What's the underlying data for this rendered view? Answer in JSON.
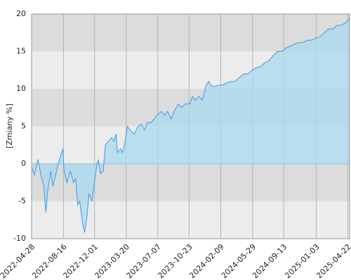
{
  "chart_data": {
    "type": "area",
    "y_label": "[Zmiany %]",
    "color": "#3d9be9",
    "fill": "#a9d9ee",
    "ylim": [
      -10,
      20
    ],
    "yticks": [
      -10,
      -5,
      0,
      5,
      10,
      15,
      20
    ],
    "xlim": [
      "2022-04-28",
      "2025-04-28"
    ],
    "xticks": [
      "2022-04-28",
      "2022-08-16",
      "2022-12-01",
      "2023-03-20",
      "2023-07-07",
      "2023-10-23",
      "2024-02-09",
      "2024-05-29",
      "2024-09-13",
      "2025-01-03",
      "2025-04-22"
    ],
    "grid": true,
    "x": [
      "2022-04-28",
      "2022-05-08",
      "2022-05-20",
      "2022-05-30",
      "2022-06-09",
      "2022-06-16",
      "2022-06-23",
      "2022-07-03",
      "2022-07-10",
      "2022-07-23",
      "2022-08-01",
      "2022-08-14",
      "2022-08-18",
      "2022-08-28",
      "2022-09-09",
      "2022-09-19",
      "2022-09-27",
      "2022-10-04",
      "2022-10-11",
      "2022-10-21",
      "2022-10-28",
      "2022-11-05",
      "2022-11-12",
      "2022-11-22",
      "2022-11-29",
      "2022-12-09",
      "2022-12-14",
      "2022-12-21",
      "2022-12-31",
      "2023-01-07",
      "2023-01-17",
      "2023-01-29",
      "2023-02-06",
      "2023-02-13",
      "2023-02-18",
      "2023-02-28",
      "2023-03-07",
      "2023-03-14",
      "2023-03-24",
      "2023-04-03",
      "2023-04-17",
      "2023-04-30",
      "2023-05-12",
      "2023-05-22",
      "2023-05-31",
      "2023-06-13",
      "2023-06-25",
      "2023-07-05",
      "2023-07-19",
      "2023-07-31",
      "2023-08-10",
      "2023-08-22",
      "2023-09-01",
      "2023-09-16",
      "2023-09-26",
      "2023-10-10",
      "2023-10-25",
      "2023-11-04",
      "2023-11-14",
      "2023-11-26",
      "2023-12-08",
      "2023-12-20",
      "2023-12-30",
      "2024-01-06",
      "2024-01-16",
      "2024-01-31",
      "2024-02-14",
      "2024-02-29",
      "2024-03-15",
      "2024-03-29",
      "2024-04-13",
      "2024-04-28",
      "2024-05-12",
      "2024-05-27",
      "2024-06-11",
      "2024-06-25",
      "2024-07-10",
      "2024-07-25",
      "2024-08-08",
      "2024-08-23",
      "2024-09-07",
      "2024-09-21",
      "2024-10-06",
      "2024-10-20",
      "2024-11-04",
      "2024-11-19",
      "2024-12-03",
      "2024-12-18",
      "2025-01-02",
      "2025-01-17",
      "2025-01-31",
      "2025-02-15",
      "2025-03-02",
      "2025-03-16",
      "2025-03-31",
      "2025-04-12",
      "2025-04-20",
      "2025-04-28"
    ],
    "values": [
      -0.5,
      -1.5,
      0.6,
      -1.5,
      -3,
      -6.5,
      -3.5,
      -1,
      -3,
      -1,
      0.5,
      2,
      -1,
      -2.5,
      -1,
      -2.5,
      -2,
      -5.5,
      -5,
      -8,
      -9.2,
      -7,
      -4,
      -5,
      -3,
      0,
      0.5,
      -1.3,
      -1,
      2.5,
      3,
      3.5,
      3,
      4,
      1.5,
      2,
      1.5,
      2.5,
      5,
      4.5,
      4,
      5,
      5.3,
      4.5,
      5.5,
      5.5,
      6,
      6.5,
      7,
      6.5,
      7,
      6,
      7,
      8,
      7.5,
      8,
      8,
      9,
      8.5,
      9,
      8.5,
      10.5,
      11,
      10.5,
      10.3,
      10.5,
      10.5,
      10.8,
      11,
      11,
      11.5,
      12,
      12,
      12.5,
      12.8,
      13,
      13.5,
      13.8,
      14.5,
      15,
      15,
      15.5,
      15.7,
      16,
      16.2,
      16.2,
      16.5,
      16.5,
      16.8,
      17,
      17.5,
      18,
      18,
      18.5,
      18.5,
      18.8,
      19,
      19.5
    ]
  }
}
